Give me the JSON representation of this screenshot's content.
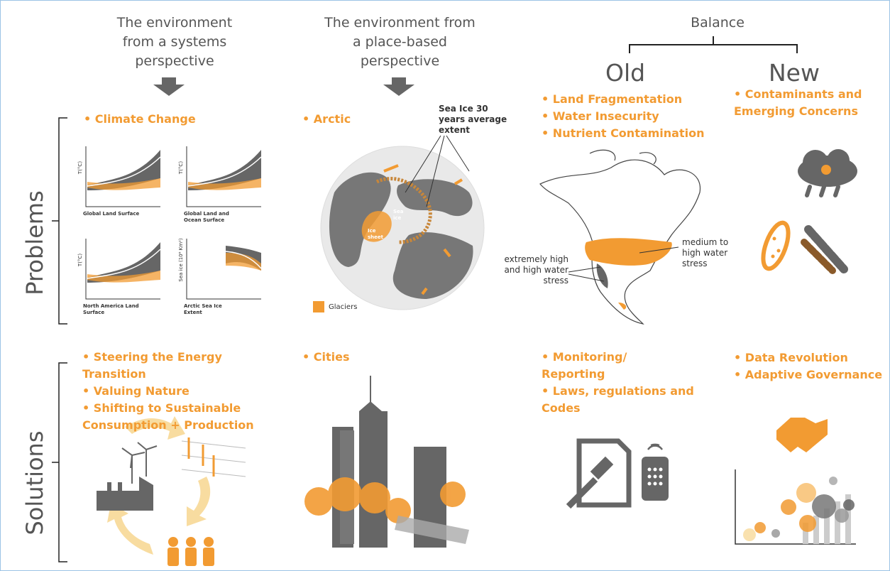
{
  "header": {
    "systems": "The environment from a systems perspective",
    "place": "The environment from a place-based perspective",
    "balance": "Balance",
    "old": "Old",
    "new": "New"
  },
  "rows": {
    "problems": "Problems",
    "solutions": "Solutions"
  },
  "problems": {
    "systems": {
      "bullets": [
        "• Climate Change"
      ],
      "charts": [
        {
          "caption": "Global Land Surface",
          "axis": "T(°C)"
        },
        {
          "caption": "Global Land and Ocean Surface",
          "axis": "T(°C)"
        },
        {
          "caption": "North America Land Surface",
          "axis": "T(°C)"
        },
        {
          "caption": "Arctic Sea Ice Extent",
          "axis": "Sea ice (10⁶ Km²)"
        }
      ]
    },
    "place": {
      "bullets": [
        "• Arctic"
      ],
      "callout": "Sea Ice 30 years average extent",
      "sea_ice": "Sea ice",
      "ice_sheet": "Ice sheet",
      "legend": "Glaciers"
    },
    "old": {
      "bullets": [
        "• Land Fragmentation",
        "• Water Insecurity",
        "• Nutrient Contamination"
      ],
      "medium": "medium to high water stress",
      "extreme": "extremely high and high water stress"
    },
    "new": {
      "bullets": [
        "• Contaminants and Emerging Concerns"
      ]
    }
  },
  "solutions": {
    "systems": {
      "bullets": [
        "• Steering the Energy Transition",
        "• Valuing Nature",
        "• Shifting to Sustainable Consumption + Production"
      ]
    },
    "place": {
      "bullets": [
        "• Cities"
      ]
    },
    "old": {
      "bullets": [
        "• Monitoring/ Reporting",
        "• Laws, regulations and Codes"
      ]
    },
    "new": {
      "bullets": [
        "• Data Revolution",
        "• Adaptive Governance"
      ]
    }
  }
}
